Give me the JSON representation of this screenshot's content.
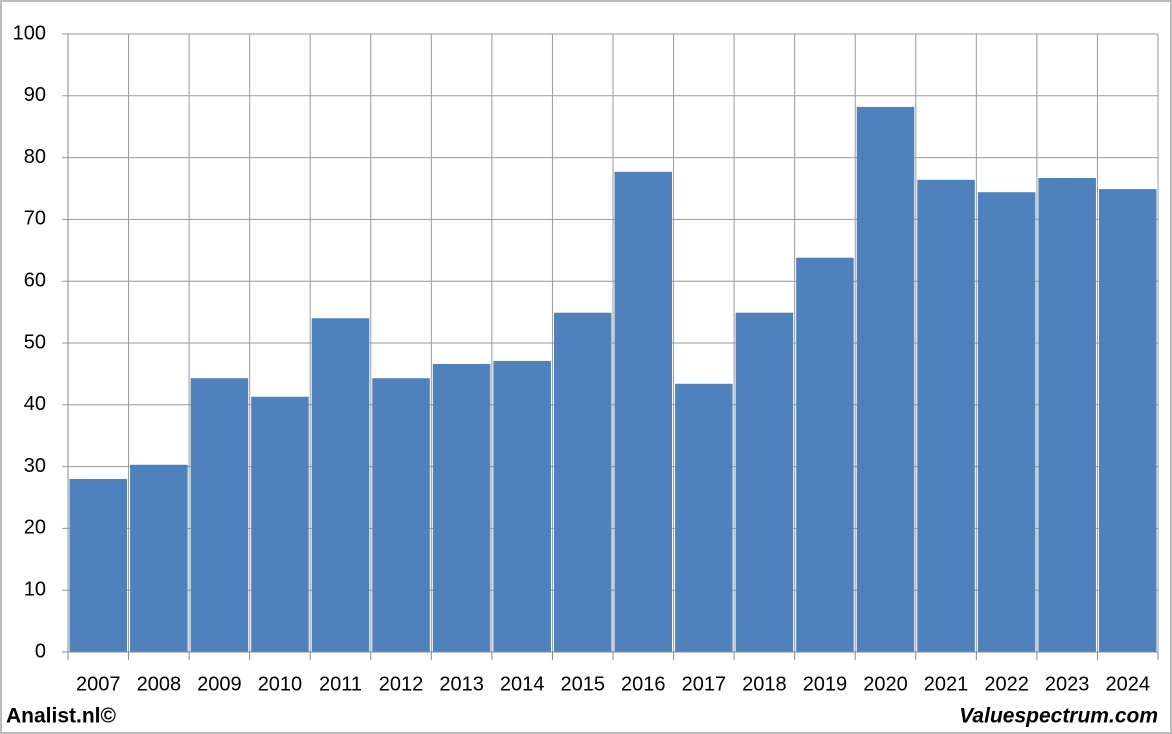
{
  "chart_data": {
    "type": "bar",
    "categories": [
      "2007",
      "2008",
      "2009",
      "2010",
      "2011",
      "2012",
      "2013",
      "2014",
      "2015",
      "2016",
      "2017",
      "2018",
      "2019",
      "2020",
      "2021",
      "2022",
      "2023",
      "2024"
    ],
    "values": [
      28.0,
      30.3,
      44.3,
      41.3,
      54.0,
      44.3,
      46.6,
      47.1,
      54.9,
      77.7,
      43.4,
      54.9,
      63.8,
      88.2,
      76.4,
      74.4,
      76.7,
      74.9
    ],
    "color": "#4f81bd",
    "ylim": [
      0,
      100
    ],
    "yticks": [
      0,
      10,
      20,
      30,
      40,
      50,
      60,
      70,
      80,
      90,
      100
    ],
    "grid": true
  },
  "footer": {
    "left": "Analist.nl©",
    "right": "Valuespectrum.com"
  }
}
